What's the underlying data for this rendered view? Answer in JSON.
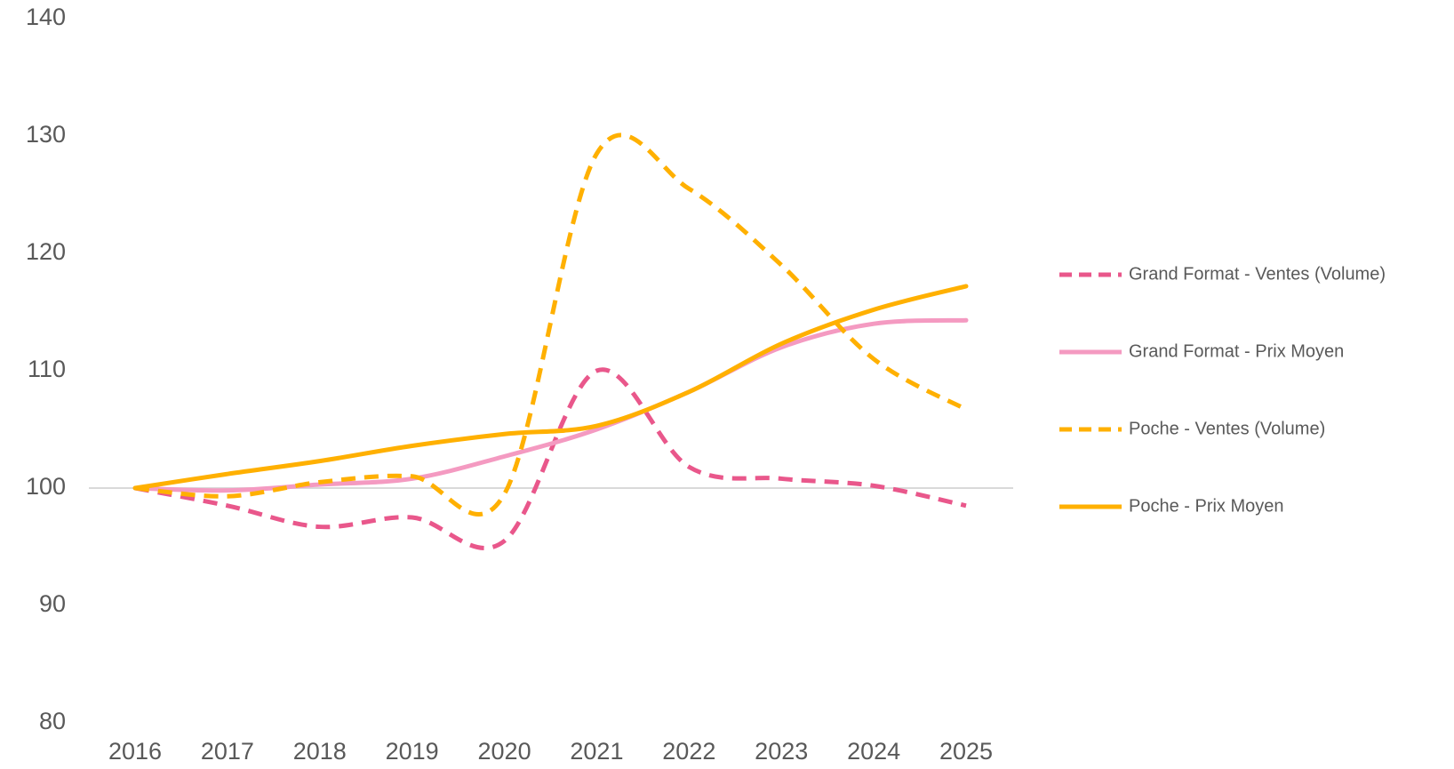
{
  "chart_data": {
    "type": "line",
    "categories": [
      "2016",
      "2017",
      "2018",
      "2019",
      "2020",
      "2021",
      "2022",
      "2023",
      "2024",
      "2025"
    ],
    "series": [
      {
        "name": "Grand Format - Ventes (Volume)",
        "color": "#e9578b",
        "dashed": true,
        "values": [
          100,
          98.5,
          96.7,
          97.5,
          95.5,
          110,
          101.8,
          100.8,
          100.2,
          98.5
        ]
      },
      {
        "name": "Grand Format - Prix Moyen",
        "color": "#f49ac1",
        "dashed": false,
        "values": [
          100,
          99.8,
          100.3,
          100.8,
          102.7,
          105,
          108.2,
          112,
          114,
          114.3
        ]
      },
      {
        "name": "Poche - Ventes (Volume)",
        "color": "#ffb000",
        "dashed": true,
        "values": [
          100,
          99.3,
          100.5,
          101,
          99.5,
          128.5,
          125.5,
          119,
          111,
          106.7
        ]
      },
      {
        "name": "Poche - Prix Moyen",
        "color": "#ffb000",
        "dashed": false,
        "values": [
          100,
          101.2,
          102.3,
          103.6,
          104.6,
          105.3,
          108.2,
          112.3,
          115.2,
          117.2
        ]
      }
    ],
    "ylim": [
      80,
      140
    ],
    "yticks": [
      80,
      90,
      100,
      110,
      120,
      130,
      140
    ],
    "x_axis_at": 100,
    "smooth": true,
    "legend": "right"
  }
}
